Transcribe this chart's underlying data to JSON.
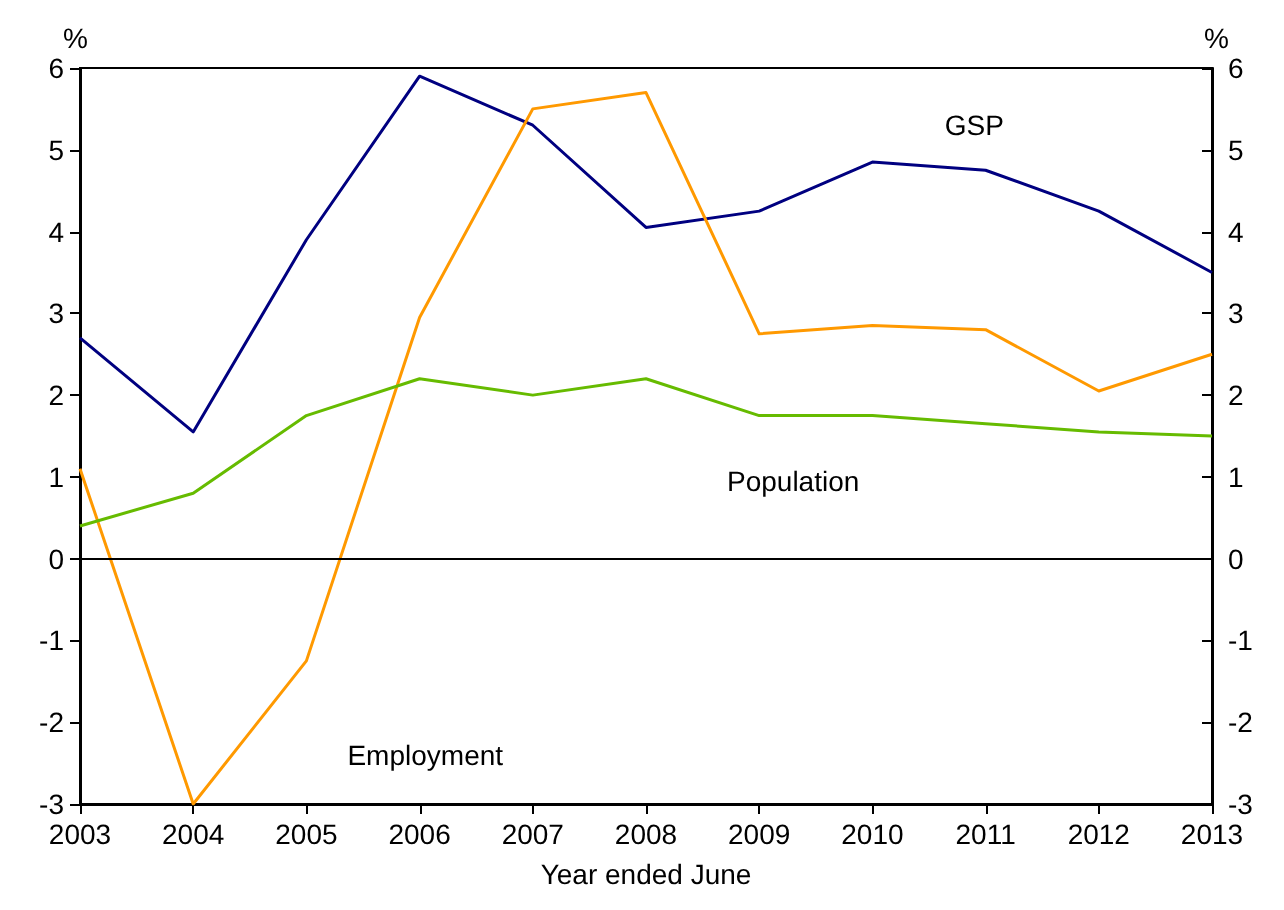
{
  "chart_data": {
    "type": "line",
    "xlabel": "Year ended June",
    "ylabel": "%",
    "y2label": "%",
    "x": [
      2003,
      2004,
      2005,
      2006,
      2007,
      2008,
      2009,
      2010,
      2011,
      2012,
      2013
    ],
    "series": [
      {
        "name": "GSP",
        "color": "#000080",
        "values": [
          2.7,
          1.55,
          3.9,
          5.9,
          5.3,
          4.05,
          4.25,
          4.85,
          4.75,
          4.25,
          3.5
        ]
      },
      {
        "name": "Employment",
        "color": "#ff9900",
        "values": [
          1.1,
          -3.0,
          -1.25,
          2.95,
          5.5,
          5.7,
          2.75,
          2.85,
          2.8,
          2.05,
          2.5
        ]
      },
      {
        "name": "Population",
        "color": "#66bb00",
        "values": [
          0.4,
          0.8,
          1.75,
          2.2,
          2.0,
          2.2,
          1.75,
          1.75,
          1.65,
          1.55,
          1.5
        ]
      }
    ],
    "xlim": [
      2003,
      2013
    ],
    "xticks": [
      2003,
      2004,
      2005,
      2006,
      2007,
      2008,
      2009,
      2010,
      2011,
      2012,
      2013
    ],
    "ylim": [
      -3,
      6
    ],
    "yticks": [
      -3,
      -2,
      -1,
      0,
      1,
      2,
      3,
      4,
      5,
      6
    ],
    "y2lim": [
      -3,
      6
    ],
    "y2ticks": [
      -3,
      -2,
      -1,
      0,
      1,
      2,
      3,
      4,
      5,
      6
    ],
    "ref_lines": [
      {
        "axis": "y",
        "value": 0,
        "color": "#000000"
      }
    ],
    "grid": false,
    "legend": false,
    "marker": "none",
    "line_style": "solid"
  }
}
